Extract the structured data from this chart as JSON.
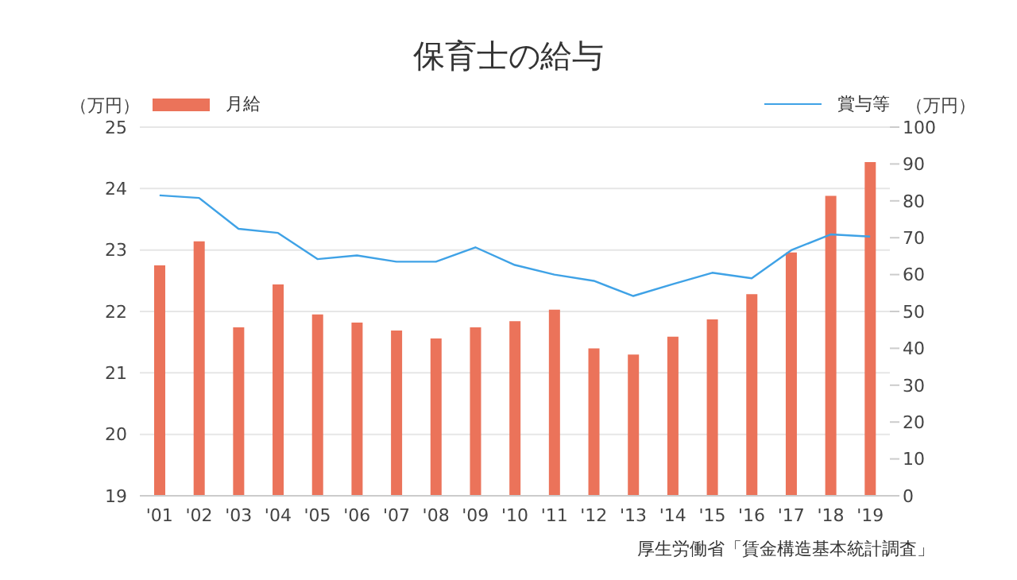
{
  "chart_data": {
    "type": "bar",
    "title": "保育士の給与",
    "ylabel": "（万円）",
    "y2label": "（万円）",
    "categories": [
      "'01",
      "'02",
      "'03",
      "'04",
      "'05",
      "'06",
      "'07",
      "'08",
      "'09",
      "'10",
      "'11",
      "'12",
      "'13",
      "'14",
      "'15",
      "'16",
      "'17",
      "'18",
      "'19"
    ],
    "series": [
      {
        "name": "月給",
        "color": "#eb735a",
        "values": [
          22.75,
          23.14,
          21.74,
          22.44,
          21.95,
          21.82,
          21.69,
          21.56,
          21.74,
          21.84,
          22.03,
          21.4,
          21.3,
          21.59,
          21.87,
          22.28,
          22.96,
          23.88,
          24.43
        ]
      },
      {
        "name": "賞与等",
        "type": "line",
        "axis": "y2",
        "color": "#3fa2e6",
        "values": [
          81.5,
          80.8,
          72.4,
          71.3,
          64.2,
          65.2,
          63.5,
          63.5,
          67.4,
          62.6,
          60.0,
          58.3,
          54.2,
          57.4,
          60.5,
          59.0,
          66.6,
          70.9,
          70.3
        ]
      }
    ],
    "ylim": [
      19,
      25
    ],
    "yticks": [
      19,
      20,
      21,
      22,
      23,
      24,
      25
    ],
    "y2lim": [
      0,
      100
    ],
    "y2ticks": [
      0,
      10,
      20,
      30,
      40,
      50,
      60,
      70,
      80,
      90,
      100
    ],
    "grid": "y",
    "legend": "top",
    "marker": "none",
    "annotations": [
      "厚生労働省「賃金構造基本統計調査」"
    ]
  }
}
